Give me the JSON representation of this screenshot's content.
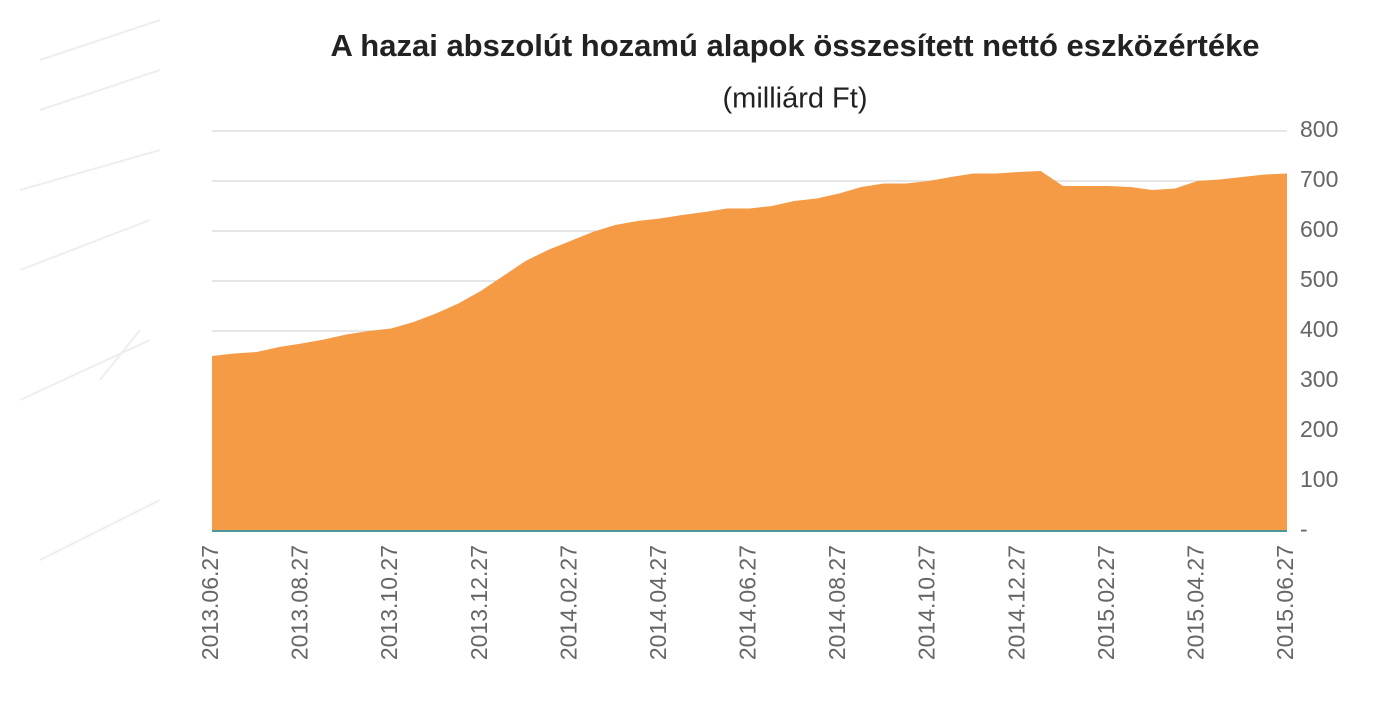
{
  "chart_data": {
    "type": "area",
    "title": "A hazai abszolút hozamú alapok összesített nettó eszközértéke",
    "subtitle": "(milliárd Ft)",
    "categories": [
      "2013.06.27",
      null,
      null,
      null,
      "2013.08.27",
      null,
      null,
      null,
      "2013.10.27",
      null,
      null,
      null,
      "2013.12.27",
      null,
      null,
      null,
      "2014.02.27",
      null,
      null,
      null,
      "2014.04.27",
      null,
      null,
      null,
      "2014.06.27",
      null,
      null,
      null,
      "2014.08.27",
      null,
      null,
      null,
      "2014.10.27",
      null,
      null,
      null,
      "2014.12.27",
      null,
      null,
      null,
      "2015.02.27",
      null,
      null,
      null,
      "2015.04.27",
      null,
      null,
      null,
      "2015.06.27"
    ],
    "series": [
      {
        "color": "#f59a45",
        "values": [
          350,
          355,
          358,
          368,
          375,
          383,
          393,
          400,
          405,
          418,
          435,
          455,
          480,
          510,
          540,
          562,
          580,
          598,
          612,
          620,
          625,
          632,
          638,
          645,
          645,
          650,
          660,
          665,
          675,
          688,
          695,
          695,
          700,
          708,
          715,
          715,
          718,
          720,
          690,
          690,
          690,
          688,
          682,
          685,
          700,
          703,
          708,
          713,
          715
        ]
      }
    ],
    "ylim": [
      0,
      800
    ],
    "yticks": [
      {
        "value": 0,
        "label": "-"
      },
      100,
      200,
      300,
      400,
      500,
      600,
      700,
      800
    ],
    "grid": true
  }
}
